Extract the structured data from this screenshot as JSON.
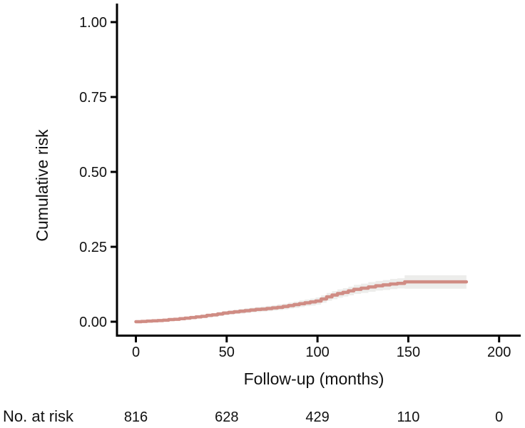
{
  "chart_data": {
    "type": "line",
    "variant": "cumulative-incidence-step-curve",
    "title": "",
    "xlabel": "Follow-up (months)",
    "ylabel": "Cumulative risk",
    "xlim": [
      0,
      200
    ],
    "ylim": [
      0.0,
      1.0
    ],
    "grid": "off",
    "legend": "none",
    "x_ticks": [
      0,
      50,
      100,
      150,
      200
    ],
    "x_tick_labels": [
      "0",
      "50",
      "100",
      "150",
      "200"
    ],
    "y_ticks": [
      1.0,
      0.75,
      0.5,
      0.25,
      0.0
    ],
    "y_tick_labels": [
      "1.00",
      "0.75",
      "0.50",
      "0.25",
      "0.00"
    ],
    "colors": {
      "curve": "#d08c84",
      "confidence_band": "#ededeb",
      "axis": "#000000",
      "text": "#111111"
    },
    "series": [
      {
        "name": "cumulative-risk",
        "color": "#d08c84",
        "band_color": "#ededeb",
        "points_format": [
          "time_months",
          "risk",
          "ci_lower",
          "ci_upper"
        ],
        "points": [
          [
            0,
            0.0,
            0.0,
            0.002
          ],
          [
            3,
            0.001,
            0.0,
            0.003
          ],
          [
            6,
            0.002,
            0.0,
            0.004
          ],
          [
            9,
            0.003,
            0.001,
            0.005
          ],
          [
            12,
            0.004,
            0.002,
            0.007
          ],
          [
            15,
            0.005,
            0.002,
            0.008
          ],
          [
            18,
            0.007,
            0.004,
            0.01
          ],
          [
            21,
            0.008,
            0.005,
            0.012
          ],
          [
            24,
            0.01,
            0.006,
            0.014
          ],
          [
            27,
            0.012,
            0.008,
            0.016
          ],
          [
            30,
            0.014,
            0.009,
            0.019
          ],
          [
            33,
            0.016,
            0.011,
            0.021
          ],
          [
            36,
            0.018,
            0.013,
            0.024
          ],
          [
            39,
            0.021,
            0.015,
            0.027
          ],
          [
            42,
            0.023,
            0.017,
            0.029
          ],
          [
            45,
            0.026,
            0.019,
            0.032
          ],
          [
            48,
            0.029,
            0.022,
            0.035
          ],
          [
            51,
            0.031,
            0.024,
            0.038
          ],
          [
            54,
            0.033,
            0.026,
            0.04
          ],
          [
            57,
            0.035,
            0.027,
            0.043
          ],
          [
            60,
            0.037,
            0.029,
            0.045
          ],
          [
            63,
            0.039,
            0.031,
            0.047
          ],
          [
            66,
            0.041,
            0.032,
            0.049
          ],
          [
            69,
            0.042,
            0.034,
            0.051
          ],
          [
            72,
            0.044,
            0.035,
            0.053
          ],
          [
            75,
            0.046,
            0.037,
            0.055
          ],
          [
            78,
            0.048,
            0.039,
            0.058
          ],
          [
            81,
            0.051,
            0.041,
            0.06
          ],
          [
            84,
            0.054,
            0.044,
            0.064
          ],
          [
            87,
            0.057,
            0.046,
            0.067
          ],
          [
            90,
            0.06,
            0.049,
            0.071
          ],
          [
            93,
            0.063,
            0.052,
            0.074
          ],
          [
            96,
            0.066,
            0.054,
            0.077
          ],
          [
            99,
            0.069,
            0.057,
            0.081
          ],
          [
            102,
            0.076,
            0.063,
            0.088
          ],
          [
            105,
            0.083,
            0.07,
            0.096
          ],
          [
            108,
            0.089,
            0.075,
            0.102
          ],
          [
            111,
            0.094,
            0.08,
            0.108
          ],
          [
            114,
            0.098,
            0.084,
            0.112
          ],
          [
            117,
            0.103,
            0.088,
            0.117
          ],
          [
            120,
            0.108,
            0.093,
            0.123
          ],
          [
            124,
            0.112,
            0.096,
            0.127
          ],
          [
            128,
            0.116,
            0.1,
            0.132
          ],
          [
            132,
            0.12,
            0.104,
            0.136
          ],
          [
            136,
            0.123,
            0.106,
            0.139
          ],
          [
            140,
            0.126,
            0.109,
            0.143
          ],
          [
            144,
            0.128,
            0.111,
            0.145
          ],
          [
            148,
            0.133,
            0.11,
            0.155
          ],
          [
            182,
            0.133,
            0.11,
            0.155
          ]
        ]
      }
    ]
  },
  "risk_table": {
    "label": "No. at risk",
    "times": [
      0,
      50,
      100,
      150,
      200
    ],
    "values": [
      "816",
      "628",
      "429",
      "110",
      "0"
    ]
  }
}
